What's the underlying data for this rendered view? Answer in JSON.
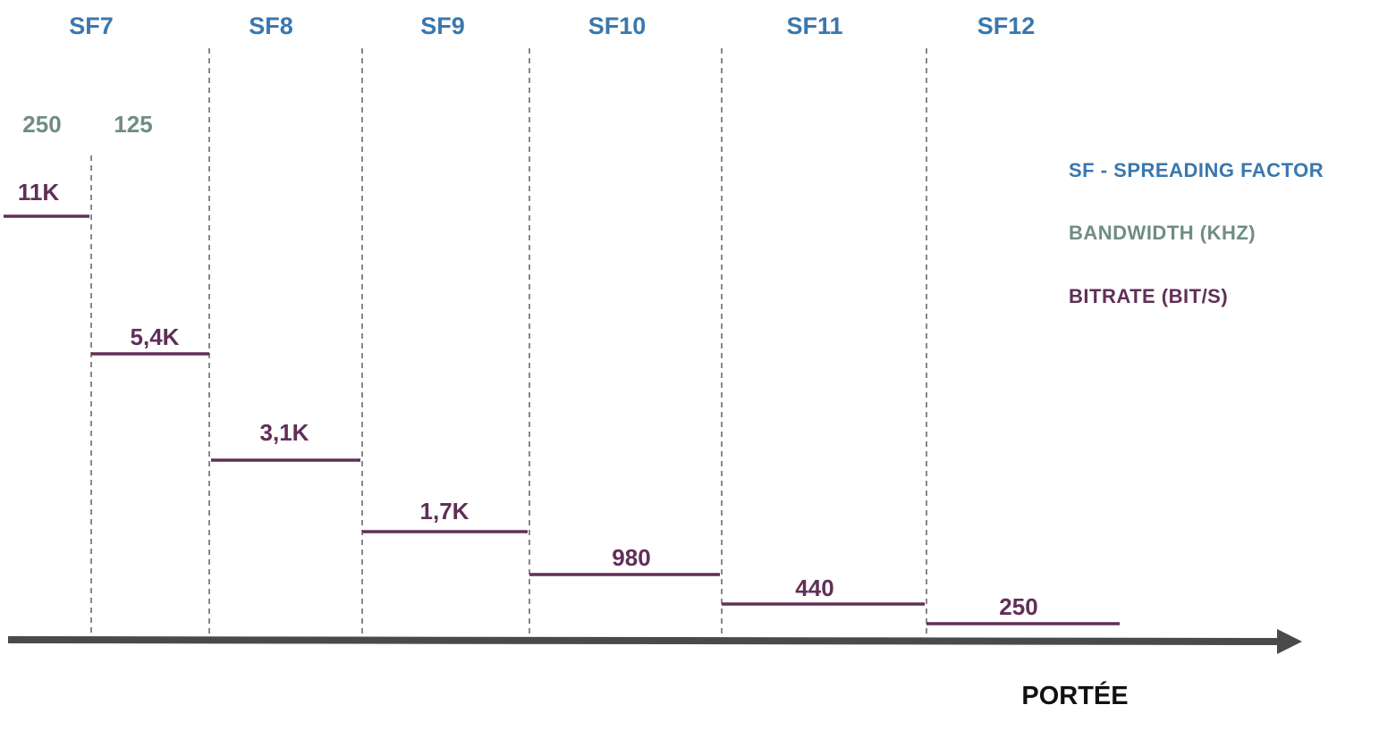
{
  "colors": {
    "spreading_factor": "#3a77ae",
    "bandwidth": "#6f8d83",
    "bitrate": "#612f57",
    "axis": "#4a4a4a",
    "separator": "#888888"
  },
  "spreading_factors": [
    "SF7",
    "SF8",
    "SF9",
    "SF10",
    "SF11",
    "SF12"
  ],
  "bandwidths": [
    "250",
    "125"
  ],
  "bitrates": [
    "11K",
    "5,4K",
    "3,1K",
    "1,7K",
    "980",
    "440",
    "250"
  ],
  "bitrate_values_bps": [
    11000,
    5400,
    3100,
    1700,
    980,
    440,
    250
  ],
  "legend": {
    "sf": "SF - SPREADING FACTOR",
    "bandwidth": "BANDWIDTH (KHZ)",
    "bitrate": "BITRATE (BIT/S)"
  },
  "axis": {
    "label": "PORTÉE",
    "arrow_icon": "arrow-right-icon"
  }
}
